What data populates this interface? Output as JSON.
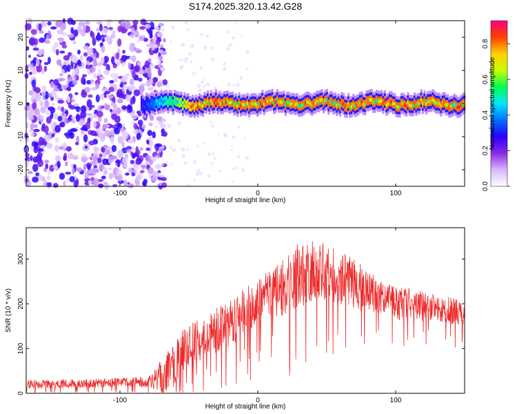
{
  "title": "S174.2025.320.13.42.G28",
  "chart_data": [
    {
      "type": "heatmap",
      "name": "spectrogram",
      "xlabel": "Height of straight line (km)",
      "ylabel": "Frequency (Hz)",
      "xlim": [
        -168,
        150
      ],
      "ylim": [
        -25,
        25
      ],
      "xticks": [
        -100,
        0,
        100
      ],
      "yticks": [
        -20,
        -10,
        0,
        10,
        20
      ],
      "colorbar": {
        "label": "Normalized spectral amplitude",
        "ticks": [
          0.0,
          0.2,
          0.4,
          0.6,
          0.8
        ],
        "range": [
          0,
          0.93
        ],
        "colors": [
          "#ffffff",
          "#d8b6ff",
          "#8a2be2",
          "#2b00ff",
          "#0070ff",
          "#00e8ff",
          "#00ff50",
          "#c8ff00",
          "#ffd000",
          "#ff4000",
          "#ff0080"
        ]
      },
      "features": {
        "noise_region_x": [
          -168,
          -75
        ],
        "noise_amplitude": 0.25,
        "tone_start_x": -85,
        "tone_frequency_hz": 0,
        "tone_peak_amplitude": 0.9
      }
    },
    {
      "type": "line",
      "name": "snr",
      "xlabel": "Height of straight line (km)",
      "ylabel": "SNR (10 * v/v)",
      "xlim": [
        -168,
        150
      ],
      "ylim": [
        0,
        370
      ],
      "xticks": [
        -100,
        0,
        100
      ],
      "yticks": [
        0,
        100,
        200,
        300
      ],
      "color": "#ee2b2b",
      "envelope": {
        "x": [
          -168,
          -120,
          -80,
          -70,
          -60,
          -50,
          -40,
          -30,
          -20,
          -10,
          0,
          10,
          20,
          30,
          40,
          50,
          60,
          70,
          80,
          90,
          100,
          110,
          120,
          130,
          140,
          150
        ],
        "y": [
          20,
          22,
          25,
          35,
          70,
          110,
          120,
          140,
          160,
          180,
          200,
          220,
          245,
          265,
          275,
          270,
          255,
          245,
          225,
          210,
          200,
          200,
          195,
          190,
          185,
          175
        ],
        "amp": [
          10,
          10,
          12,
          40,
          55,
          50,
          45,
          50,
          55,
          55,
          55,
          60,
          70,
          75,
          70,
          65,
          60,
          55,
          50,
          40,
          40,
          35,
          35,
          30,
          30,
          30
        ]
      }
    }
  ]
}
